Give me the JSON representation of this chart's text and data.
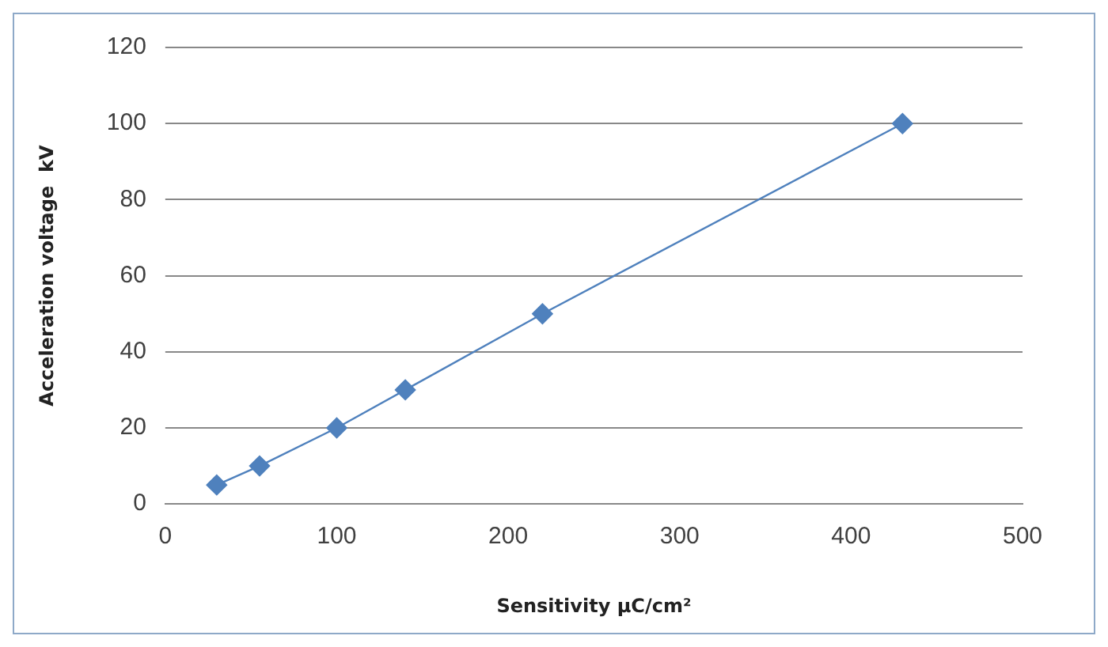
{
  "chart_data": {
    "type": "line",
    "xlabel": "Sensitivity μC/cm²",
    "ylabel": "Acceleration voltage  kV",
    "x": [
      30,
      55,
      100,
      140,
      220,
      430
    ],
    "series": [
      {
        "color": "#4f81bd",
        "values": [
          5,
          10,
          20,
          30,
          50,
          100
        ]
      }
    ],
    "xlim": [
      0,
      500
    ],
    "xticks": [
      0,
      100,
      200,
      300,
      400,
      500
    ],
    "ylim": [
      0,
      120
    ],
    "yticks": [
      0,
      20,
      40,
      60,
      80,
      100,
      120
    ],
    "grid": "y",
    "legend": false,
    "marker": "diamond",
    "line_style": "solid"
  }
}
